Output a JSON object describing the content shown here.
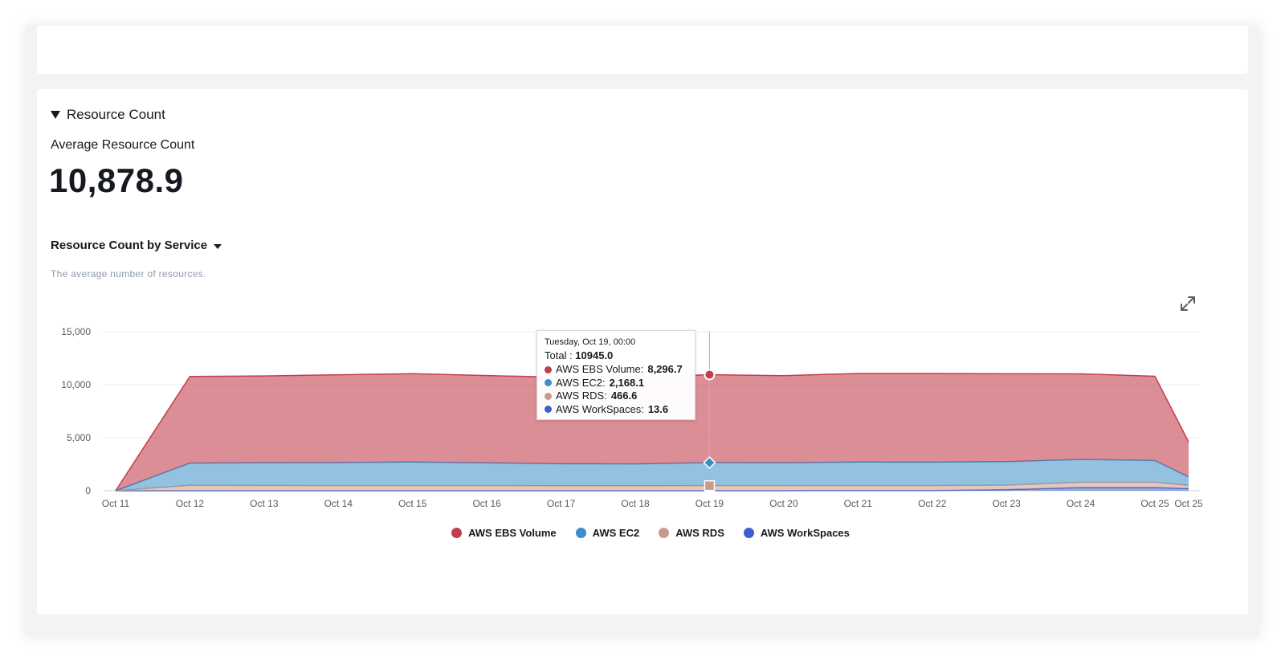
{
  "section": {
    "title": "Resource Count"
  },
  "metric": {
    "label": "Average Resource Count",
    "value": "10,878.9"
  },
  "chart": {
    "title": "Resource Count by Service",
    "description": "The average number of resources."
  },
  "tooltip": {
    "date": "Tuesday, Oct 19, 00:00",
    "total_label": "Total : ",
    "total_value": "10945.0",
    "rows": [
      {
        "label": "AWS EBS Volume: ",
        "value": "8,296.7",
        "color": "#c33d4b"
      },
      {
        "label": "AWS EC2: ",
        "value": "2,168.1",
        "color": "#3b8ec7"
      },
      {
        "label": "AWS RDS: ",
        "value": "466.6",
        "color": "#c99a8c"
      },
      {
        "label": "AWS WorkSpaces: ",
        "value": "13.6",
        "color": "#3c5fcb"
      }
    ]
  },
  "icons": {
    "expand": "expand-icon",
    "collapse": "caret-down-icon"
  },
  "chart_data": {
    "type": "area",
    "stacked": true,
    "categories": [
      "Oct 11",
      "Oct 12",
      "Oct 13",
      "Oct 14",
      "Oct 15",
      "Oct 16",
      "Oct 17",
      "Oct 18",
      "Oct 19",
      "Oct 20",
      "Oct 21",
      "Oct 22",
      "Oct 23",
      "Oct 24",
      "Oct 25",
      "Oct 25"
    ],
    "ylim": [
      0,
      15000
    ],
    "yticks": [
      0,
      5000,
      10000,
      15000
    ],
    "ytick_labels": [
      "0",
      "5,000",
      "10,000",
      "15,000"
    ],
    "grid": true,
    "legend_position": "bottom-center",
    "series": [
      {
        "name": "AWS WorkSpaces",
        "color": "#3c5fcb",
        "values": [
          0,
          10,
          10,
          12,
          12,
          12,
          13,
          13,
          13.6,
          14,
          15,
          20,
          100,
          300,
          300,
          200
        ]
      },
      {
        "name": "AWS RDS",
        "color": "#c99a8c",
        "values": [
          0,
          500,
          480,
          470,
          470,
          470,
          465,
          465,
          466.6,
          470,
          470,
          460,
          420,
          500,
          500,
          300
        ]
      },
      {
        "name": "AWS EC2",
        "color": "#3b8ec7",
        "values": [
          0,
          2100,
          2150,
          2180,
          2230,
          2150,
          2070,
          2050,
          2168.1,
          2160,
          2220,
          2220,
          2230,
          2150,
          2050,
          800
        ]
      },
      {
        "name": "AWS EBS Volume",
        "color": "#c33d4b",
        "values": [
          0,
          8170,
          8180,
          8280,
          8330,
          8230,
          8150,
          8150,
          8296.7,
          8210,
          8360,
          8360,
          8280,
          8070,
          7950,
          3300
        ]
      }
    ],
    "hover_index": 8
  }
}
